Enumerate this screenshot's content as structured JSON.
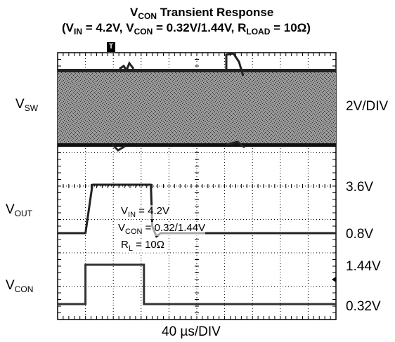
{
  "chart_data": {
    "type": "line",
    "title": {
      "main": "V",
      "main_sub": "CON",
      "main_rest": " Transient Response",
      "line2": [
        {
          "t": "(V"
        },
        {
          "s": "IN"
        },
        {
          "t": " = 4.2V, V"
        },
        {
          "s": "CON"
        },
        {
          "t": " = 0.32V/1.44V, R"
        },
        {
          "s": "LOAD"
        },
        {
          "t": " = 10Ω)"
        }
      ]
    },
    "xlabel": "40 µs/DIV",
    "grid": true,
    "x_divisions": 10,
    "y_divisions": 8,
    "trigger_marker": "T",
    "channels": [
      {
        "name": "V",
        "sub": "SW",
        "scale_label": "2V/DIV"
      },
      {
        "name": "V",
        "sub": "OUT",
        "level_labels": [
          "3.6V",
          "0.8V"
        ]
      },
      {
        "name": "V",
        "sub": "CON",
        "level_labels": [
          "1.44V",
          "0.32V"
        ]
      }
    ],
    "annotation": [
      {
        "t": "V",
        "s": "IN",
        "r": " = 4.2V"
      },
      {
        "t": "V",
        "s": "CON",
        "r": " = 0.32/1.44V"
      },
      {
        "t": "R",
        "s": "L",
        "r": " = 10Ω"
      }
    ],
    "series": [
      {
        "name": "VOUT",
        "x_div": [
          0,
          1.0,
          1.25,
          3.1,
          3.35,
          3.4,
          3.55,
          3.7,
          10
        ],
        "y_V": [
          0.8,
          0.8,
          3.6,
          3.6,
          3.6,
          1.2,
          0.6,
          0.8,
          0.8
        ]
      },
      {
        "name": "VCON",
        "x_div": [
          0,
          1.0,
          1.0,
          3.1,
          3.1,
          10
        ],
        "y_V": [
          0.32,
          0.32,
          1.44,
          1.44,
          0.32,
          0.32
        ]
      }
    ]
  }
}
